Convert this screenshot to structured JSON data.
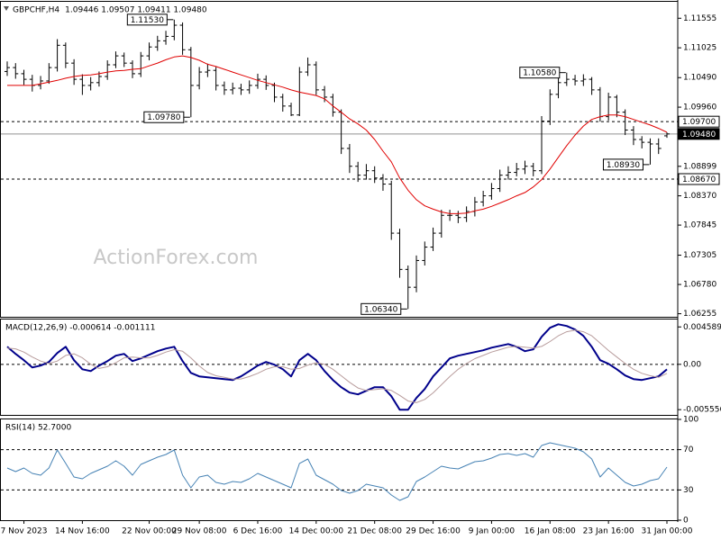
{
  "chart_data": [
    {
      "type": "ohlc",
      "title": "GBPCHF,H4",
      "subtitle": "1.09446 1.09507 1.09411 1.09480",
      "watermark": "ActionForex.com",
      "bar_color": "#000000",
      "categories": [
        null,
        null,
        "7 Nov 2023",
        null,
        null,
        null,
        null,
        null,
        null,
        "14 Nov 16:00",
        null,
        null,
        null,
        null,
        null,
        null,
        null,
        "22 Nov 00:00",
        null,
        null,
        null,
        null,
        null,
        "29 Nov 08:00",
        null,
        null,
        null,
        null,
        null,
        null,
        "6 Dec 16:00",
        null,
        null,
        null,
        null,
        null,
        null,
        "14 Dec 00:00",
        null,
        null,
        null,
        null,
        null,
        null,
        "21 Dec 08:00",
        null,
        null,
        null,
        null,
        null,
        null,
        "29 Dec 16:00",
        null,
        null,
        null,
        null,
        null,
        null,
        "9 Jan 00:00",
        null,
        null,
        null,
        null,
        null,
        null,
        "16 Jan 08:00",
        null,
        null,
        null,
        null,
        null,
        null,
        "23 Jan 16:00",
        null,
        null,
        null,
        null,
        null,
        null,
        "31 Jan 00:00"
      ],
      "open": [
        1.106,
        1.1067,
        1.1056,
        1.1046,
        1.1035,
        1.1043,
        1.1067,
        1.1107,
        1.1075,
        1.1046,
        1.1035,
        1.104,
        1.1051,
        1.1072,
        1.1088,
        1.1075,
        1.1056,
        1.1088,
        1.1104,
        1.1115,
        1.1123,
        1.1143,
        1.1099,
        1.1035,
        1.1059,
        1.1062,
        1.1035,
        1.1027,
        1.103,
        1.1027,
        1.1035,
        1.1046,
        1.1035,
        1.1014,
        1.0998,
        1.0982,
        1.1059,
        1.1072,
        1.1027,
        1.1014,
        1.0987,
        1.0922,
        1.089,
        1.0874,
        1.0882,
        1.0869,
        1.0858,
        1.077,
        1.0705,
        1.0673,
        1.0721,
        1.0745,
        1.077,
        1.0802,
        1.0802,
        1.0798,
        1.0809,
        1.0826,
        1.0837,
        1.085,
        1.0874,
        1.0879,
        1.0885,
        1.089,
        1.0882,
        1.0971,
        1.1019,
        1.104,
        1.1046,
        1.1043,
        1.1046,
        1.1027,
        1.0979,
        1.1014,
        1.0987,
        1.0955,
        1.0938,
        1.0933,
        1.093,
        1.09446
      ],
      "high": [
        1.1078,
        1.1075,
        1.1063,
        1.1054,
        1.1052,
        1.1075,
        1.1118,
        1.1112,
        1.1082,
        1.1055,
        1.105,
        1.106,
        1.108,
        1.1096,
        1.1094,
        1.108,
        1.1095,
        1.1112,
        1.1124,
        1.1133,
        1.1153,
        1.1148,
        1.1104,
        1.1068,
        1.1074,
        1.1068,
        1.1042,
        1.104,
        1.1038,
        1.1044,
        1.1056,
        1.1053,
        1.104,
        1.102,
        1.1004,
        1.1068,
        1.1085,
        1.1078,
        1.1034,
        1.102,
        1.0992,
        1.093,
        1.0898,
        1.0894,
        1.089,
        1.0876,
        1.0864,
        1.0778,
        1.0712,
        1.073,
        1.0755,
        1.078,
        1.0812,
        1.0812,
        1.081,
        1.0818,
        1.0835,
        1.0846,
        1.086,
        1.0884,
        1.089,
        1.0896,
        1.09,
        1.0896,
        1.098,
        1.1028,
        1.105,
        1.1058,
        1.1054,
        1.1055,
        1.105,
        1.1032,
        1.1022,
        1.1018,
        1.0992,
        1.0962,
        1.0944,
        1.094,
        1.094,
        1.09507
      ],
      "low": [
        1.1052,
        1.1047,
        1.1036,
        1.1024,
        1.1028,
        1.1038,
        1.106,
        1.1066,
        1.1036,
        1.1018,
        1.1026,
        1.1033,
        1.1045,
        1.1066,
        1.1068,
        1.1048,
        1.105,
        1.108,
        1.1097,
        1.1108,
        1.1116,
        1.109,
        1.0978,
        1.1028,
        1.105,
        1.1026,
        1.1018,
        1.1019,
        1.1018,
        1.102,
        1.1029,
        1.1027,
        1.1005,
        1.0988,
        1.098,
        1.098,
        1.1052,
        1.1018,
        1.1005,
        1.0979,
        1.0912,
        1.0878,
        1.0862,
        1.0866,
        1.086,
        1.0846,
        1.0758,
        1.069,
        1.0634,
        1.0664,
        1.0712,
        1.0738,
        1.0762,
        1.0792,
        1.0788,
        1.079,
        1.08,
        1.0818,
        1.083,
        1.0844,
        1.0866,
        1.0872,
        1.0876,
        1.0872,
        1.0876,
        1.0964,
        1.1012,
        1.1034,
        1.1035,
        1.1034,
        1.1018,
        1.097,
        1.0972,
        1.0978,
        1.0946,
        1.0928,
        1.0922,
        1.0893,
        1.0912,
        1.09411
      ],
      "close": [
        1.1067,
        1.1056,
        1.1046,
        1.1035,
        1.1043,
        1.1067,
        1.1107,
        1.1075,
        1.1046,
        1.1035,
        1.104,
        1.1051,
        1.1072,
        1.1088,
        1.1075,
        1.1056,
        1.1088,
        1.1104,
        1.1115,
        1.1123,
        1.1143,
        1.1099,
        1.1035,
        1.1059,
        1.1062,
        1.1035,
        1.1027,
        1.103,
        1.1027,
        1.1035,
        1.1046,
        1.1035,
        1.1014,
        1.0998,
        1.0982,
        1.1059,
        1.1072,
        1.1027,
        1.1014,
        1.0987,
        1.0922,
        1.089,
        1.0874,
        1.0882,
        1.0869,
        1.0858,
        1.077,
        1.0705,
        1.0673,
        1.0721,
        1.0745,
        1.077,
        1.0802,
        1.0802,
        1.0798,
        1.0809,
        1.0826,
        1.0837,
        1.085,
        1.0874,
        1.0879,
        1.0885,
        1.089,
        1.0882,
        1.0971,
        1.1019,
        1.104,
        1.1046,
        1.1043,
        1.1046,
        1.1027,
        1.0979,
        1.1014,
        1.0987,
        1.0955,
        1.0938,
        1.0933,
        1.093,
        1.0922,
        1.0948
      ],
      "series": [
        {
          "color": "#e00000",
          "width": 1,
          "values": [
            1.1035,
            1.1035,
            1.1035,
            1.1035,
            1.1038,
            1.1041,
            1.1044,
            1.1048,
            1.1051,
            1.1053,
            1.1054,
            1.1056,
            1.1059,
            1.1061,
            1.1062,
            1.1064,
            1.1065,
            1.107,
            1.1075,
            1.1081,
            1.1086,
            1.1088,
            1.1085,
            1.108,
            1.1073,
            1.1069,
            1.1064,
            1.1059,
            1.1054,
            1.1049,
            1.1044,
            1.104,
            1.1036,
            1.1032,
            1.1027,
            1.1023,
            1.102,
            1.1017,
            1.1011,
            1.0998,
            1.0987,
            1.0975,
            1.0966,
            1.0955,
            1.0938,
            1.0917,
            1.0898,
            1.0869,
            1.0847,
            1.083,
            1.0819,
            1.0813,
            1.0808,
            1.0805,
            1.0805,
            1.0806,
            1.081,
            1.0813,
            1.0818,
            1.0824,
            1.083,
            1.0837,
            1.0843,
            1.0853,
            1.0866,
            1.0885,
            1.0906,
            1.0927,
            1.0946,
            1.0962,
            1.0974,
            1.0979,
            1.0982,
            1.0982,
            1.0979,
            1.0974,
            1.0969,
            1.0964,
            1.0958,
            1.0951
          ]
        }
      ],
      "ylim": [
        1.062,
        1.1185
      ],
      "yticks": [
        1.11555,
        1.11025,
        {
          "value": 1.1049,
          "label": "1.10490"
        },
        {
          "value": 1.0996,
          "label": "1.09960"
        },
        1.08899,
        {
          "value": 1.0837,
          "label": "1.08370"
        },
        1.07845,
        1.07305,
        {
          "value": 1.0678,
          "label": "1.06780"
        },
        1.06255
      ],
      "levels": [
        {
          "value": 1.097,
          "label": "1.09700",
          "style": "dashed"
        },
        {
          "value": 1.0867,
          "label": "1.08670",
          "style": "dashed"
        },
        {
          "value": 1.0948,
          "label": "1.09480",
          "style": "solid"
        }
      ],
      "annotations": [
        {
          "value": 1.1153,
          "label": "1.11530"
        },
        {
          "value": 1.0978,
          "label": "1.09780"
        },
        {
          "value": 1.0634,
          "label": "1.06340"
        },
        {
          "value": 1.1058,
          "label": "1.10580"
        },
        {
          "value": 1.0893,
          "label": "1.08930"
        }
      ]
    },
    {
      "type": "line",
      "title": "MACD(12,26,9) -0.000614 -0.001111",
      "series": [
        {
          "color": "#00008b",
          "width": 2,
          "values": [
            0.00216,
            0.00128,
            0.00051,
            -0.00038,
            -0.00015,
            0.00029,
            0.00139,
            0.00216,
            0.00051,
            -0.0006,
            -0.00082,
            -0.00015,
            0.0004,
            0.00106,
            0.00128,
            0.0004,
            0.00073,
            0.00117,
            0.00161,
            0.00194,
            0.00216,
            0.0004,
            -0.00104,
            -0.00148,
            -0.00159,
            -0.0017,
            -0.00181,
            -0.00192,
            -0.00148,
            -0.00082,
            -0.00015,
            0.00029,
            -4e-05,
            -0.0006,
            -0.00148,
            0.00051,
            0.00128,
            0.00051,
            -0.00082,
            -0.00192,
            -0.0028,
            -0.00346,
            -0.00368,
            -0.00324,
            -0.0028,
            -0.0028,
            -0.0039,
            -0.00556,
            -0.00556,
            -0.00413,
            -0.00302,
            -0.00148,
            -0.00038,
            0.00073,
            0.00106,
            0.00128,
            0.0015,
            0.00172,
            0.00205,
            0.00227,
            0.00249,
            0.00216,
            0.00161,
            0.00183,
            0.00338,
            0.00449,
            0.00492,
            0.0047,
            0.00426,
            0.00349,
            0.00216,
            0.00051,
            7e-05,
            -0.0006,
            -0.00137,
            -0.00181,
            -0.00192,
            -0.0017,
            -0.00148,
            -0.000614
          ]
        },
        {
          "color": "#b89c9c",
          "width": 1,
          "values": [
            0.002,
            0.0019,
            0.0015,
            0.0009,
            0.0004,
            0.0001,
            0.0004,
            0.0011,
            0.0013,
            0.0008,
            0,
            -0.0005,
            -0.0003,
            0.0002,
            0.0008,
            0.0009,
            0.0008,
            0.0008,
            0.0011,
            0.0015,
            0.0018,
            0.0016,
            0.0008,
            -0.0002,
            -0.001,
            -0.0014,
            -0.0016,
            -0.0018,
            -0.0018,
            -0.0015,
            -0.0011,
            -0.0006,
            -0.0003,
            -0.0003,
            -0.0006,
            -0.0005,
            -0.0001,
            0.0002,
            0,
            -0.0006,
            -0.0014,
            -0.0022,
            -0.0029,
            -0.0032,
            -0.0031,
            -0.003,
            -0.0032,
            -0.0038,
            -0.0045,
            -0.0047,
            -0.0043,
            -0.0035,
            -0.0025,
            -0.0015,
            -0.0006,
            0.0001,
            0.0007,
            0.0011,
            0.0015,
            0.0018,
            0.0021,
            0.0022,
            0.0021,
            0.002,
            0.0022,
            0.0028,
            0.0035,
            0.004,
            0.0042,
            0.004,
            0.0035,
            0.0026,
            0.0017,
            0.0009,
            0.0001,
            -0.0006,
            -0.0011,
            -0.0014,
            -0.0016,
            -0.001111
          ]
        }
      ],
      "ylim": [
        -0.0062,
        0.0055
      ],
      "yticks": [
        0.004589,
        {
          "value": 0,
          "label": "0.00"
        },
        -0.005556
      ],
      "levels": [
        {
          "value": 0,
          "style": "dashed"
        }
      ]
    },
    {
      "type": "line",
      "title": "RSI(14) 52.7000",
      "series": [
        {
          "color": "#4682b4",
          "width": 1,
          "values": [
            51.8,
            48.2,
            51.8,
            46.4,
            44.6,
            51.8,
            69.6,
            56.3,
            42.9,
            41.1,
            46.4,
            50.0,
            53.6,
            58.9,
            53.6,
            44.6,
            55.4,
            58.9,
            62.5,
            65.2,
            69.6,
            44.6,
            32.1,
            42.9,
            44.6,
            37.5,
            35.7,
            38.4,
            37.5,
            41.1,
            46.4,
            42.9,
            39.3,
            35.7,
            32.1,
            56.3,
            60.7,
            44.6,
            40.2,
            35.7,
            29.5,
            26.8,
            29.5,
            35.7,
            33.9,
            32.1,
            25.0,
            19.6,
            23.2,
            38.4,
            42.9,
            48.2,
            53.6,
            51.8,
            50.9,
            54.5,
            58.0,
            58.9,
            61.6,
            65.2,
            66.1,
            64.3,
            66.1,
            62.5,
            74.1,
            76.8,
            75.0,
            73.2,
            71.4,
            67.9,
            60.7,
            42.9,
            51.8,
            44.6,
            37.5,
            33.9,
            35.7,
            39.3,
            41.1,
            52.7
          ]
        }
      ],
      "ylim": [
        0,
        100
      ],
      "yticks": [
        100,
        70,
        30,
        0
      ],
      "levels": [
        {
          "value": 70,
          "style": "dashed"
        },
        {
          "value": 30,
          "style": "dashed"
        }
      ]
    }
  ]
}
